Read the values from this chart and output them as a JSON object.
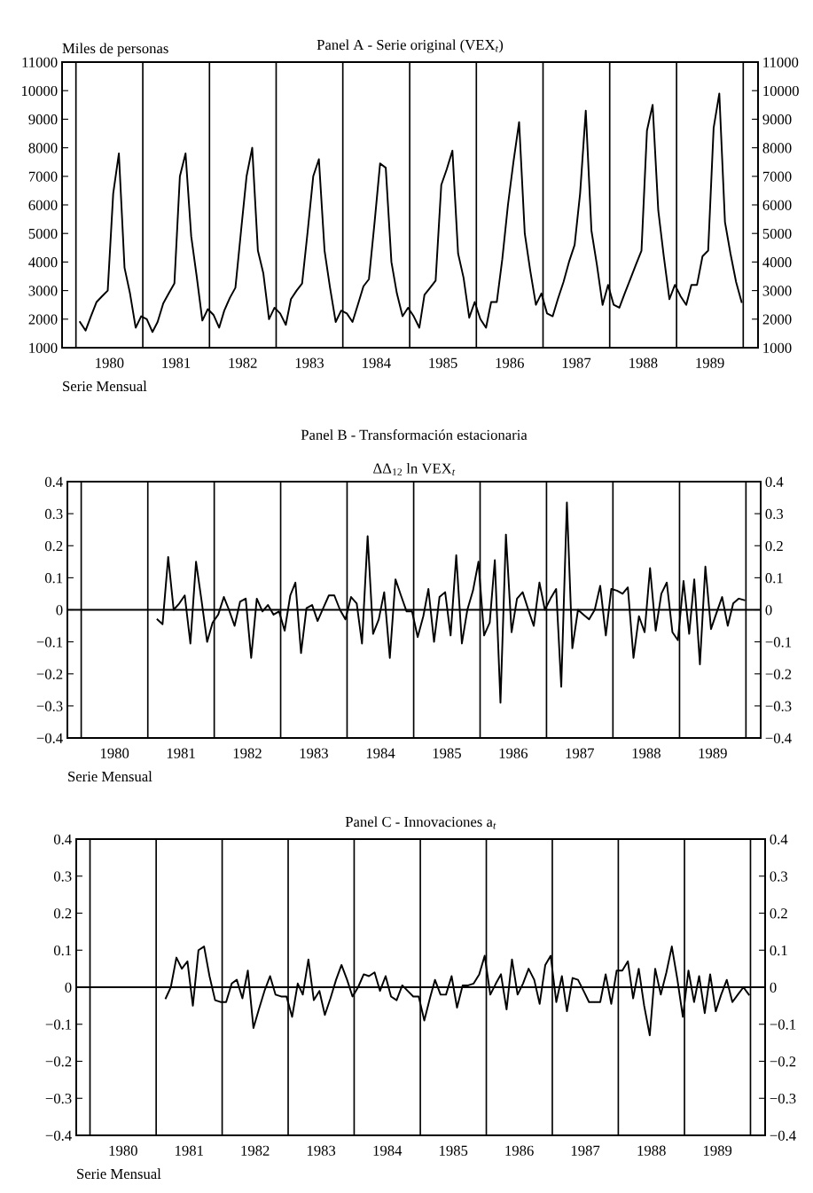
{
  "chart_data": [
    {
      "type": "line",
      "title": "Panel A - Serie original (VEX$_{t}$)",
      "ylabel": "Miles de personas",
      "xlabel": "Serie Mensual",
      "color": "#000000",
      "x": [
        "1980-01",
        "1980-02",
        "1980-03",
        "1980-04",
        "1980-05",
        "1980-06",
        "1980-07",
        "1980-08",
        "1980-09",
        "1980-10",
        "1980-11",
        "1980-12",
        "1981-01",
        "1981-02",
        "1981-03",
        "1981-04",
        "1981-05",
        "1981-06",
        "1981-07",
        "1981-08",
        "1981-09",
        "1981-10",
        "1981-11",
        "1981-12",
        "1982-01",
        "1982-02",
        "1982-03",
        "1982-04",
        "1982-05",
        "1982-06",
        "1982-07",
        "1982-08",
        "1982-09",
        "1982-10",
        "1982-11",
        "1982-12",
        "1983-01",
        "1983-02",
        "1983-03",
        "1983-04",
        "1983-05",
        "1983-06",
        "1983-07",
        "1983-08",
        "1983-09",
        "1983-10",
        "1983-11",
        "1983-12",
        "1984-01",
        "1984-02",
        "1984-03",
        "1984-04",
        "1984-05",
        "1984-06",
        "1984-07",
        "1984-08",
        "1984-09",
        "1984-10",
        "1984-11",
        "1984-12",
        "1985-01",
        "1985-02",
        "1985-03",
        "1985-04",
        "1985-05",
        "1985-06",
        "1985-07",
        "1985-08",
        "1985-09",
        "1985-10",
        "1985-11",
        "1985-12",
        "1986-01",
        "1986-02",
        "1986-03",
        "1986-04",
        "1986-05",
        "1986-06",
        "1986-07",
        "1986-08",
        "1986-09",
        "1986-10",
        "1986-11",
        "1986-12",
        "1987-01",
        "1987-02",
        "1987-03",
        "1987-04",
        "1987-05",
        "1987-06",
        "1987-07",
        "1987-08",
        "1987-09",
        "1987-10",
        "1987-11",
        "1987-12",
        "1988-01",
        "1988-02",
        "1988-03",
        "1988-04",
        "1988-05",
        "1988-06",
        "1988-07",
        "1988-08",
        "1988-09",
        "1988-10",
        "1988-11",
        "1988-12",
        "1989-01",
        "1989-02",
        "1989-03",
        "1989-04",
        "1989-05",
        "1989-06",
        "1989-07",
        "1989-08",
        "1989-09",
        "1989-10",
        "1989-11",
        "1989-12"
      ],
      "values": [
        1900,
        1600,
        2100,
        2600,
        2800,
        3000,
        6400,
        7800,
        3800,
        2900,
        1700,
        2100,
        2000,
        1550,
        1900,
        2550,
        2900,
        3250,
        7000,
        7800,
        4900,
        3500,
        1950,
        2350,
        2150,
        1700,
        2300,
        2750,
        3100,
        5100,
        7000,
        8000,
        4400,
        3600,
        2000,
        2400,
        2200,
        1800,
        2700,
        3000,
        3250,
        5100,
        7000,
        7600,
        4400,
        3100,
        1900,
        2300,
        2200,
        1900,
        2500,
        3150,
        3400,
        5400,
        7450,
        7300,
        4000,
        2900,
        2100,
        2400,
        2100,
        1700,
        2850,
        3100,
        3350,
        6700,
        7250,
        7900,
        4300,
        3450,
        2050,
        2600,
        2000,
        1700,
        2600,
        2600,
        4100,
        6000,
        7500,
        8900,
        5000,
        3700,
        2500,
        2900,
        2200,
        2100,
        2700,
        3300,
        4000,
        4600,
        6400,
        9300,
        5100,
        3900,
        2500,
        3200,
        2500,
        2400,
        2900,
        3400,
        3900,
        4400,
        8600,
        9500,
        5800,
        4200,
        2700,
        3200,
        2800,
        2500,
        3200,
        3200,
        4200,
        4400,
        8700,
        9900,
        5400,
        4300,
        3300,
        2600
      ],
      "xlim": [
        "1979-09-25",
        "1990-03-01"
      ],
      "xticks": [
        {
          "value": "1980-06-10",
          "label": "1980"
        },
        {
          "value": "1981-06-10",
          "label": "1981"
        },
        {
          "value": "1982-06-10",
          "label": "1982"
        },
        {
          "value": "1983-06-10",
          "label": "1983"
        },
        {
          "value": "1984-06-10",
          "label": "1984"
        },
        {
          "value": "1985-06-10",
          "label": "1985"
        },
        {
          "value": "1986-06-10",
          "label": "1986"
        },
        {
          "value": "1987-06-10",
          "label": "1987"
        },
        {
          "value": "1988-06-10",
          "label": "1988"
        },
        {
          "value": "1989-06-10",
          "label": "1989"
        }
      ],
      "ylim": [
        1000,
        11000
      ],
      "yticks": [
        1000,
        2000,
        3000,
        4000,
        5000,
        6000,
        7000,
        8000,
        9000,
        10000,
        11000
      ],
      "y2lim": [
        1000,
        11000
      ],
      "y2ticks": [
        1000,
        2000,
        3000,
        4000,
        5000,
        6000,
        7000,
        8000,
        9000,
        10000,
        11000
      ],
      "ref_lines": [
        {
          "axis": "x",
          "value": "1979-12-10",
          "color": "#000000"
        },
        {
          "axis": "x",
          "value": "1980-12-10",
          "color": "#000000"
        },
        {
          "axis": "x",
          "value": "1981-12-10",
          "color": "#000000"
        },
        {
          "axis": "x",
          "value": "1982-12-10",
          "color": "#000000"
        },
        {
          "axis": "x",
          "value": "1983-12-10",
          "color": "#000000"
        },
        {
          "axis": "x",
          "value": "1984-12-10",
          "color": "#000000"
        },
        {
          "axis": "x",
          "value": "1985-12-10",
          "color": "#000000"
        },
        {
          "axis": "x",
          "value": "1986-12-10",
          "color": "#000000"
        },
        {
          "axis": "x",
          "value": "1987-12-10",
          "color": "#000000"
        },
        {
          "axis": "x",
          "value": "1988-12-10",
          "color": "#000000"
        },
        {
          "axis": "x",
          "value": "1989-12-10",
          "color": "#000000"
        }
      ]
    },
    {
      "type": "line",
      "title": "Panel B - Transformación estacionaria",
      "subtitle": "ΔΔ$_{12}$ ln VEX$_{t}$",
      "xlabel": "Serie Mensual",
      "color": "#000000",
      "x": [
        "1981-02",
        "1981-03",
        "1981-04",
        "1981-05",
        "1981-06",
        "1981-07",
        "1981-08",
        "1981-09",
        "1981-10",
        "1981-11",
        "1981-12",
        "1982-01",
        "1982-02",
        "1982-03",
        "1982-04",
        "1982-05",
        "1982-06",
        "1982-07",
        "1982-08",
        "1982-09",
        "1982-10",
        "1982-11",
        "1982-12",
        "1983-01",
        "1983-02",
        "1983-03",
        "1983-04",
        "1983-05",
        "1983-06",
        "1983-07",
        "1983-08",
        "1983-09",
        "1983-10",
        "1983-11",
        "1983-12",
        "1984-01",
        "1984-02",
        "1984-03",
        "1984-04",
        "1984-05",
        "1984-06",
        "1984-07",
        "1984-08",
        "1984-09",
        "1984-10",
        "1984-11",
        "1984-12",
        "1985-01",
        "1985-02",
        "1985-03",
        "1985-04",
        "1985-05",
        "1985-06",
        "1985-07",
        "1985-08",
        "1985-09",
        "1985-10",
        "1985-11",
        "1985-12",
        "1986-01",
        "1986-02",
        "1986-03",
        "1986-04",
        "1986-05",
        "1986-06",
        "1986-07",
        "1986-08",
        "1986-09",
        "1986-10",
        "1986-11",
        "1986-12",
        "1987-01",
        "1987-02",
        "1987-03",
        "1987-04",
        "1987-05",
        "1987-06",
        "1987-07",
        "1987-08",
        "1987-09",
        "1987-10",
        "1987-11",
        "1987-12",
        "1988-01",
        "1988-02",
        "1988-03",
        "1988-04",
        "1988-05",
        "1988-06",
        "1988-07",
        "1988-08",
        "1988-09",
        "1988-10",
        "1988-11",
        "1988-12",
        "1989-01",
        "1989-02",
        "1989-03",
        "1989-04",
        "1989-05",
        "1989-06",
        "1989-07",
        "1989-08",
        "1989-09",
        "1989-10",
        "1989-11",
        "1989-12"
      ],
      "values": [
        -0.03,
        -0.045,
        0.165,
        0.0,
        0.02,
        0.045,
        -0.105,
        0.15,
        0.03,
        -0.1,
        -0.04,
        -0.015,
        0.04,
        0.0,
        -0.05,
        0.025,
        0.035,
        -0.15,
        0.035,
        -0.005,
        0.015,
        -0.015,
        -0.005,
        -0.065,
        0.045,
        0.085,
        -0.135,
        0.005,
        0.015,
        -0.035,
        0.005,
        0.045,
        0.045,
        0.0,
        -0.03,
        0.04,
        0.02,
        -0.105,
        0.23,
        -0.075,
        -0.03,
        0.055,
        -0.15,
        0.095,
        0.045,
        -0.005,
        -0.005,
        -0.085,
        -0.02,
        0.065,
        -0.1,
        0.04,
        0.055,
        -0.08,
        0.17,
        -0.105,
        0.0,
        0.06,
        0.15,
        -0.08,
        -0.04,
        0.155,
        -0.29,
        0.235,
        -0.07,
        0.035,
        0.055,
        0.0,
        -0.05,
        0.085,
        0.0,
        0.035,
        0.065,
        -0.24,
        0.335,
        -0.12,
        0.0,
        -0.015,
        -0.03,
        0.0,
        0.075,
        -0.08,
        0.065,
        0.06,
        0.05,
        0.07,
        -0.15,
        -0.02,
        -0.07,
        0.13,
        -0.065,
        0.05,
        0.085,
        -0.07,
        -0.095,
        0.09,
        -0.075,
        0.095,
        -0.17,
        0.135,
        -0.06,
        -0.01,
        0.04,
        -0.05,
        0.02,
        0.035,
        0.03
      ],
      "xlim": [
        "1979-09-25",
        "1990-03-01"
      ],
      "xticks": [
        {
          "value": "1980-06-10",
          "label": "1980"
        },
        {
          "value": "1981-06-10",
          "label": "1981"
        },
        {
          "value": "1982-06-10",
          "label": "1982"
        },
        {
          "value": "1983-06-10",
          "label": "1983"
        },
        {
          "value": "1984-06-10",
          "label": "1984"
        },
        {
          "value": "1985-06-10",
          "label": "1985"
        },
        {
          "value": "1986-06-10",
          "label": "1986"
        },
        {
          "value": "1987-06-10",
          "label": "1987"
        },
        {
          "value": "1988-06-10",
          "label": "1988"
        },
        {
          "value": "1989-06-10",
          "label": "1989"
        }
      ],
      "ylim": [
        -0.4,
        0.4
      ],
      "yticks": [
        {
          "value": -0.4,
          "label": "−0.4"
        },
        {
          "value": -0.3,
          "label": "−0.3"
        },
        {
          "value": -0.2,
          "label": "−0.2"
        },
        {
          "value": -0.1,
          "label": "−0.1"
        },
        0,
        0.1,
        0.2,
        0.3,
        0.4
      ],
      "y2lim": [
        -0.4,
        0.4
      ],
      "y2ticks": [
        {
          "value": -0.4,
          "label": "−0.4"
        },
        {
          "value": -0.3,
          "label": "−0.3"
        },
        {
          "value": -0.2,
          "label": "−0.2"
        },
        {
          "value": -0.1,
          "label": "−0.1"
        },
        0,
        0.1,
        0.2,
        0.3,
        0.4
      ],
      "ref_lines": [
        {
          "axis": "y",
          "value": 0,
          "color": "#000000"
        },
        {
          "axis": "x",
          "value": "1979-12-10",
          "color": "#000000"
        },
        {
          "axis": "x",
          "value": "1980-12-10",
          "color": "#000000"
        },
        {
          "axis": "x",
          "value": "1981-12-10",
          "color": "#000000"
        },
        {
          "axis": "x",
          "value": "1982-12-10",
          "color": "#000000"
        },
        {
          "axis": "x",
          "value": "1983-12-10",
          "color": "#000000"
        },
        {
          "axis": "x",
          "value": "1984-12-10",
          "color": "#000000"
        },
        {
          "axis": "x",
          "value": "1985-12-10",
          "color": "#000000"
        },
        {
          "axis": "x",
          "value": "1986-12-10",
          "color": "#000000"
        },
        {
          "axis": "x",
          "value": "1987-12-10",
          "color": "#000000"
        },
        {
          "axis": "x",
          "value": "1988-12-10",
          "color": "#000000"
        },
        {
          "axis": "x",
          "value": "1989-12-10",
          "color": "#000000"
        }
      ]
    },
    {
      "type": "line",
      "title": "Panel C - Innovaciones a$_{t}$",
      "xlabel": "Serie Mensual",
      "color": "#000000",
      "x": [
        "1981-02",
        "1981-03",
        "1981-04",
        "1981-05",
        "1981-06",
        "1981-07",
        "1981-08",
        "1981-09",
        "1981-10",
        "1981-11",
        "1981-12",
        "1982-01",
        "1982-02",
        "1982-03",
        "1982-04",
        "1982-05",
        "1982-06",
        "1982-07",
        "1982-08",
        "1982-09",
        "1982-10",
        "1982-11",
        "1982-12",
        "1983-01",
        "1983-02",
        "1983-03",
        "1983-04",
        "1983-05",
        "1983-06",
        "1983-07",
        "1983-08",
        "1983-09",
        "1983-10",
        "1983-11",
        "1983-12",
        "1984-01",
        "1984-02",
        "1984-03",
        "1984-04",
        "1984-05",
        "1984-06",
        "1984-07",
        "1984-08",
        "1984-09",
        "1984-10",
        "1984-11",
        "1984-12",
        "1985-01",
        "1985-02",
        "1985-03",
        "1985-04",
        "1985-05",
        "1985-06",
        "1985-07",
        "1985-08",
        "1985-09",
        "1985-10",
        "1985-11",
        "1985-12",
        "1986-01",
        "1986-02",
        "1986-03",
        "1986-04",
        "1986-05",
        "1986-06",
        "1986-07",
        "1986-08",
        "1986-09",
        "1986-10",
        "1986-11",
        "1986-12",
        "1987-01",
        "1987-02",
        "1987-03",
        "1987-04",
        "1987-05",
        "1987-06",
        "1987-07",
        "1987-08",
        "1987-09",
        "1987-10",
        "1987-11",
        "1987-12",
        "1988-01",
        "1988-02",
        "1988-03",
        "1988-04",
        "1988-05",
        "1988-06",
        "1988-07",
        "1988-08",
        "1988-09",
        "1988-10",
        "1988-11",
        "1988-12",
        "1989-01",
        "1989-02",
        "1989-03",
        "1989-04",
        "1989-05",
        "1989-06",
        "1989-07",
        "1989-08",
        "1989-09",
        "1989-10",
        "1989-11",
        "1989-12"
      ],
      "values": [
        -0.03,
        0.0,
        0.08,
        0.05,
        0.07,
        -0.05,
        0.1,
        0.11,
        0.03,
        -0.035,
        -0.04,
        -0.04,
        0.01,
        0.02,
        -0.03,
        0.045,
        -0.11,
        -0.06,
        -0.01,
        0.03,
        -0.02,
        -0.025,
        -0.025,
        -0.08,
        0.01,
        -0.02,
        0.075,
        -0.035,
        -0.01,
        -0.075,
        -0.03,
        0.02,
        0.06,
        0.02,
        -0.025,
        0.0,
        0.035,
        0.03,
        0.04,
        -0.01,
        0.03,
        -0.025,
        -0.035,
        0.005,
        -0.01,
        -0.025,
        -0.025,
        -0.09,
        -0.03,
        0.02,
        -0.02,
        -0.02,
        0.03,
        -0.055,
        0.005,
        0.005,
        0.01,
        0.035,
        0.085,
        -0.02,
        0.01,
        0.035,
        -0.06,
        0.075,
        -0.02,
        0.01,
        0.05,
        0.02,
        -0.045,
        0.06,
        0.085,
        -0.04,
        0.03,
        -0.065,
        0.025,
        0.02,
        -0.01,
        -0.04,
        -0.04,
        -0.04,
        0.035,
        -0.045,
        0.045,
        0.045,
        0.07,
        -0.03,
        0.05,
        -0.05,
        -0.13,
        0.05,
        -0.02,
        0.04,
        0.11,
        0.02,
        -0.08,
        0.045,
        -0.04,
        0.03,
        -0.07,
        0.035,
        -0.065,
        -0.02,
        0.02,
        -0.04,
        -0.02,
        0.0,
        -0.02
      ],
      "xlim": [
        "1979-09-25",
        "1990-03-01"
      ],
      "xticks": [
        {
          "value": "1980-06-10",
          "label": "1980"
        },
        {
          "value": "1981-06-10",
          "label": "1981"
        },
        {
          "value": "1982-06-10",
          "label": "1982"
        },
        {
          "value": "1983-06-10",
          "label": "1983"
        },
        {
          "value": "1984-06-10",
          "label": "1984"
        },
        {
          "value": "1985-06-10",
          "label": "1985"
        },
        {
          "value": "1986-06-10",
          "label": "1986"
        },
        {
          "value": "1987-06-10",
          "label": "1987"
        },
        {
          "value": "1988-06-10",
          "label": "1988"
        },
        {
          "value": "1989-06-10",
          "label": "1989"
        }
      ],
      "ylim": [
        -0.4,
        0.4
      ],
      "yticks": [
        {
          "value": -0.4,
          "label": "−0.4"
        },
        {
          "value": -0.3,
          "label": "−0.3"
        },
        {
          "value": -0.2,
          "label": "−0.2"
        },
        {
          "value": -0.1,
          "label": "−0.1"
        },
        0,
        0.1,
        0.2,
        0.3,
        0.4
      ],
      "y2lim": [
        -0.4,
        0.4
      ],
      "y2ticks": [
        {
          "value": -0.4,
          "label": "−0.4"
        },
        {
          "value": -0.3,
          "label": "−0.3"
        },
        {
          "value": -0.2,
          "label": "−0.2"
        },
        {
          "value": -0.1,
          "label": "−0.1"
        },
        0,
        0.1,
        0.2,
        0.3,
        0.4
      ],
      "ref_lines": [
        {
          "axis": "y",
          "value": 0,
          "color": "#000000"
        },
        {
          "axis": "x",
          "value": "1979-12-10",
          "color": "#000000"
        },
        {
          "axis": "x",
          "value": "1980-12-10",
          "color": "#000000"
        },
        {
          "axis": "x",
          "value": "1981-12-10",
          "color": "#000000"
        },
        {
          "axis": "x",
          "value": "1982-12-10",
          "color": "#000000"
        },
        {
          "axis": "x",
          "value": "1983-12-10",
          "color": "#000000"
        },
        {
          "axis": "x",
          "value": "1984-12-10",
          "color": "#000000"
        },
        {
          "axis": "x",
          "value": "1985-12-10",
          "color": "#000000"
        },
        {
          "axis": "x",
          "value": "1986-12-10",
          "color": "#000000"
        },
        {
          "axis": "x",
          "value": "1987-12-10",
          "color": "#000000"
        },
        {
          "axis": "x",
          "value": "1988-12-10",
          "color": "#000000"
        },
        {
          "axis": "x",
          "value": "1989-12-10",
          "color": "#000000"
        }
      ]
    }
  ]
}
